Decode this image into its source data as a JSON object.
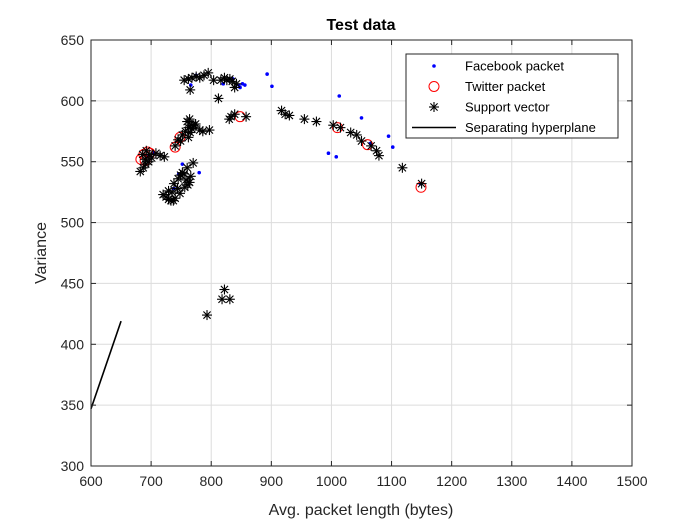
{
  "chart_data": {
    "type": "scatter",
    "title": "Test data",
    "xlabel": "Avg. packet length (bytes)",
    "ylabel": "Variance",
    "xlim": [
      600,
      1500
    ],
    "ylim": [
      300,
      650
    ],
    "xticks": [
      600,
      700,
      800,
      900,
      1000,
      1100,
      1200,
      1300,
      1400,
      1500
    ],
    "yticks": [
      300,
      350,
      400,
      450,
      500,
      550,
      600,
      650
    ],
    "grid": true,
    "legend_position": "top-right",
    "colors": {
      "facebook": "#0000ff",
      "twitter": "#ff0000",
      "support": "#000000",
      "hyperplane": "#000000"
    },
    "series": [
      {
        "name": "Facebook packet",
        "marker": "dot",
        "points": [
          [
            893,
            622
          ],
          [
            901,
            612
          ],
          [
            1013,
            604
          ],
          [
            1050,
            586
          ],
          [
            995,
            557
          ],
          [
            1008,
            554
          ],
          [
            1095,
            571
          ],
          [
            1102,
            562
          ],
          [
            1148,
            532
          ],
          [
            780,
            541
          ],
          [
            848,
            611
          ],
          [
            852,
            614
          ],
          [
            856,
            613
          ],
          [
            766,
            613
          ],
          [
            775,
            621
          ],
          [
            836,
            618
          ],
          [
            846,
            613
          ],
          [
            1065,
            565
          ],
          [
            738,
            528
          ],
          [
            746,
            540
          ],
          [
            752,
            548
          ],
          [
            704,
            557
          ],
          [
            694,
            554
          ],
          [
            820,
            614
          ]
        ]
      },
      {
        "name": "Twitter packet",
        "marker": "circle",
        "points": [
          [
            683,
            552
          ],
          [
            688,
            556
          ],
          [
            694,
            558
          ],
          [
            698,
            557
          ],
          [
            690,
            551
          ],
          [
            740,
            562
          ],
          [
            748,
            570
          ],
          [
            848,
            587
          ],
          [
            1010,
            578
          ],
          [
            1060,
            564
          ],
          [
            1149,
            529
          ]
        ]
      },
      {
        "name": "Support vector",
        "marker": "star",
        "points": [
          [
            755,
            617
          ],
          [
            762,
            618
          ],
          [
            768,
            619
          ],
          [
            775,
            620
          ],
          [
            781,
            619
          ],
          [
            788,
            621
          ],
          [
            795,
            623
          ],
          [
            765,
            609
          ],
          [
            812,
            602
          ],
          [
            816,
            617
          ],
          [
            822,
            619
          ],
          [
            826,
            617
          ],
          [
            831,
            618
          ],
          [
            835,
            616
          ],
          [
            839,
            611
          ],
          [
            842,
            614
          ],
          [
            830,
            585
          ],
          [
            833,
            587
          ],
          [
            839,
            589
          ],
          [
            858,
            587
          ],
          [
            762,
            570
          ],
          [
            765,
            574
          ],
          [
            768,
            577
          ],
          [
            771,
            580
          ],
          [
            774,
            581
          ],
          [
            762,
            578
          ],
          [
            757,
            575
          ],
          [
            752,
            572
          ],
          [
            749,
            567
          ],
          [
            745,
            568
          ],
          [
            760,
            583
          ],
          [
            764,
            585
          ],
          [
            768,
            580
          ],
          [
            781,
            576
          ],
          [
            786,
            575
          ],
          [
            797,
            576
          ],
          [
            740,
            563
          ],
          [
            738,
            532
          ],
          [
            745,
            536
          ],
          [
            749,
            539
          ],
          [
            752,
            541
          ],
          [
            755,
            540
          ],
          [
            758,
            535
          ],
          [
            761,
            531
          ],
          [
            744,
            528
          ],
          [
            748,
            524
          ],
          [
            764,
            533
          ],
          [
            766,
            538
          ],
          [
            756,
            529
          ],
          [
            770,
            549
          ],
          [
            760,
            545
          ],
          [
            722,
            554
          ],
          [
            715,
            555
          ],
          [
            708,
            557
          ],
          [
            701,
            553
          ],
          [
            696,
            550
          ],
          [
            691,
            548
          ],
          [
            687,
            545
          ],
          [
            682,
            542
          ],
          [
            690,
            552
          ],
          [
            686,
            556
          ],
          [
            692,
            559
          ],
          [
            697,
            556
          ],
          [
            720,
            523
          ],
          [
            725,
            521
          ],
          [
            729,
            519
          ],
          [
            733,
            518
          ],
          [
            737,
            518
          ],
          [
            740,
            520
          ],
          [
            735,
            525
          ],
          [
            729,
            526
          ],
          [
            917,
            592
          ],
          [
            923,
            589
          ],
          [
            930,
            588
          ],
          [
            955,
            585
          ],
          [
            975,
            583
          ],
          [
            1003,
            580
          ],
          [
            1015,
            578
          ],
          [
            1032,
            574
          ],
          [
            1042,
            572
          ],
          [
            1050,
            567
          ],
          [
            1066,
            563
          ],
          [
            1075,
            559
          ],
          [
            1079,
            555
          ],
          [
            1118,
            545
          ],
          [
            1150,
            532
          ],
          [
            822,
            445
          ],
          [
            818,
            437
          ],
          [
            831,
            437
          ],
          [
            793,
            424
          ],
          [
            804,
            617
          ]
        ]
      }
    ],
    "hyperplane": {
      "name": "Separating hyperplane",
      "x": [
        600,
        650
      ],
      "y": [
        347,
        419
      ]
    }
  }
}
